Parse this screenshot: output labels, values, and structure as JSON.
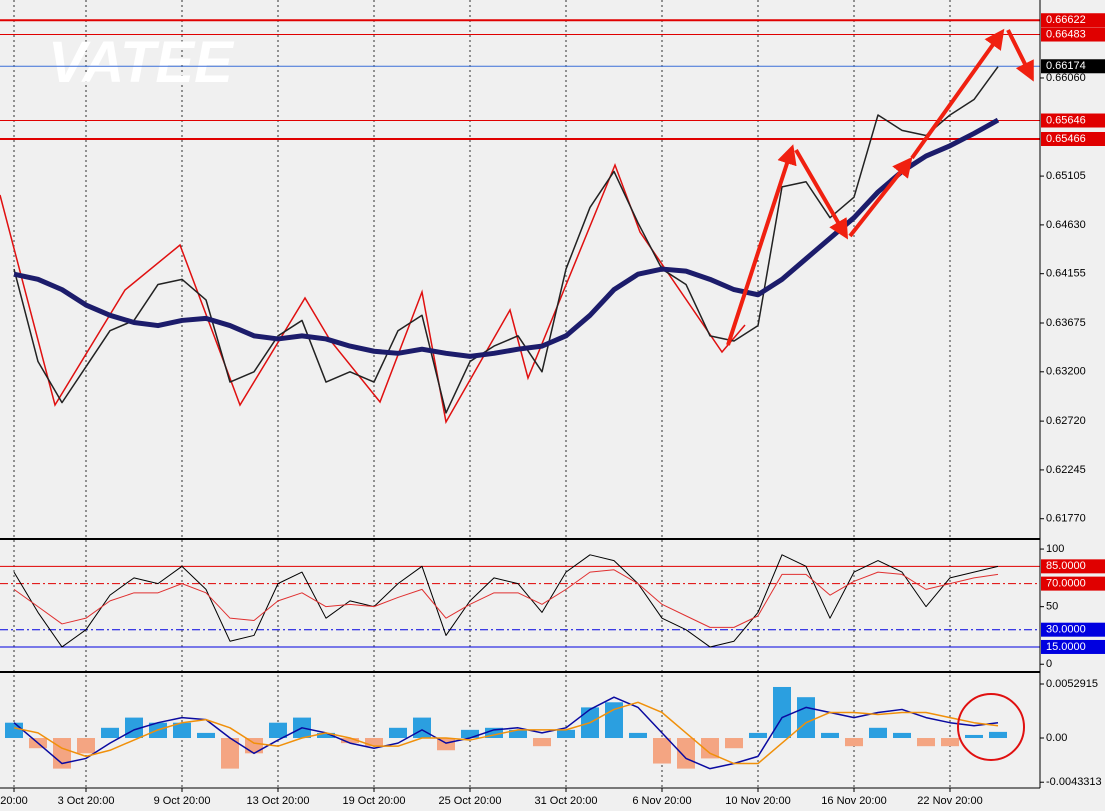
{
  "chart_data": [
    {
      "type": "line",
      "annotation": "VATEE",
      "ylim": [
        0.61592,
        0.66819
      ],
      "yticks": [
        {
          "value": 0.6606,
          "label": "0.66060"
        },
        0.65105,
        {
          "value": 0.6463,
          "label": "0.64630"
        },
        0.64155,
        0.63675,
        {
          "value": 0.632,
          "label": "0.63200"
        },
        {
          "value": 0.6272,
          "label": "0.62720"
        },
        0.62245,
        {
          "value": 0.6177,
          "label": "0.61770"
        }
      ],
      "levels": [
        {
          "value": 0.66622,
          "color": "#e00000",
          "box_color": "#e00000",
          "width": 2
        },
        {
          "value": 0.66483,
          "color": "#e00000",
          "box_color": "#e00000",
          "width": 1
        },
        {
          "value": 0.66174,
          "color": "#3b6fd8",
          "box_color": "#000000",
          "width": 1
        },
        {
          "value": 0.65646,
          "color": "#e00000",
          "box_color": "#e00000",
          "width": 1
        },
        {
          "value": 0.65466,
          "color": "#e00000",
          "box_color": "#e00000",
          "width": 2
        }
      ],
      "series": [
        {
          "color": "#222222",
          "width": 1.5,
          "values": [
            0.642,
            0.633,
            0.629,
            0.6325,
            0.636,
            0.637,
            0.6405,
            0.641,
            0.639,
            0.631,
            0.632,
            0.6355,
            0.637,
            0.631,
            0.632,
            0.631,
            0.636,
            0.6375,
            0.628,
            0.633,
            0.6345,
            0.6355,
            0.632,
            0.642,
            0.648,
            0.6515,
            0.6465,
            0.642,
            0.6405,
            0.6355,
            0.635,
            0.6365,
            0.65,
            0.6505,
            0.647,
            0.649,
            0.657,
            0.6555,
            0.655,
            0.657,
            0.6585,
            0.6617
          ]
        },
        {
          "color": "#1c1c6b",
          "width": 5,
          "values": [
            0.6415,
            0.641,
            0.64,
            0.6385,
            0.6375,
            0.6368,
            0.6365,
            0.637,
            0.6372,
            0.6365,
            0.6355,
            0.6352,
            0.6355,
            0.6352,
            0.6345,
            0.634,
            0.6338,
            0.6342,
            0.6338,
            0.6335,
            0.6338,
            0.6342,
            0.6345,
            0.6355,
            0.6375,
            0.64,
            0.6415,
            0.642,
            0.6418,
            0.641,
            0.64,
            0.6395,
            0.641,
            0.643,
            0.645,
            0.647,
            0.6495,
            0.6515,
            0.653,
            0.654,
            0.6552,
            0.6565
          ]
        }
      ]
    },
    {
      "type": "line",
      "ylim": [
        -5,
        107
      ],
      "yticks": [
        100,
        50,
        0
      ],
      "levels": [
        {
          "value": 85,
          "label": "85.0000",
          "color": "#e00000",
          "box_color": "#e00000",
          "style": "solid"
        },
        {
          "value": 70,
          "label": "70.0000",
          "color": "#e00000",
          "box_color": "#e00000",
          "style": "dashdot"
        },
        {
          "value": 30,
          "label": "30.0000",
          "color": "#0000e0",
          "box_color": "#0000e0",
          "style": "dashdot"
        },
        {
          "value": 15,
          "label": "15.0000",
          "color": "#0000e0",
          "box_color": "#0000e0",
          "style": "solid"
        }
      ],
      "series": [
        {
          "color": "#000000",
          "width": 1,
          "values": [
            80,
            45,
            15,
            30,
            60,
            75,
            70,
            85,
            65,
            20,
            25,
            70,
            80,
            40,
            55,
            50,
            70,
            85,
            25,
            55,
            75,
            70,
            45,
            80,
            95,
            90,
            70,
            40,
            30,
            15,
            20,
            45,
            95,
            85,
            40,
            80,
            90,
            80,
            50,
            75,
            80,
            85
          ]
        },
        {
          "color": "#e03030",
          "width": 1,
          "values": [
            65,
            50,
            35,
            40,
            55,
            62,
            62,
            70,
            62,
            40,
            38,
            55,
            62,
            50,
            52,
            50,
            58,
            65,
            40,
            52,
            62,
            62,
            52,
            65,
            80,
            82,
            70,
            52,
            42,
            32,
            32,
            42,
            78,
            78,
            60,
            72,
            80,
            78,
            65,
            70,
            75,
            78
          ]
        }
      ]
    },
    {
      "type": "bar",
      "ylim": [
        -0.0048,
        0.00637
      ],
      "yticks": [
        0.0052915,
        {
          "value": 0,
          "label": "0.00"
        },
        -0.0043313
      ],
      "categories": [
        "20:00",
        null,
        null,
        "3 Oct 20:00",
        null,
        null,
        null,
        "9 Oct 20:00",
        null,
        null,
        null,
        "13 Oct 20:00",
        null,
        null,
        null,
        "19 Oct 20:00",
        null,
        null,
        null,
        "25 Oct 20:00",
        null,
        null,
        null,
        "31 Oct 20:00",
        null,
        null,
        null,
        "6 Nov 20:00",
        null,
        null,
        null,
        "10 Nov 20:00",
        null,
        null,
        null,
        "16 Nov 20:00",
        null,
        null,
        null,
        "22 Nov 20:00",
        null,
        null
      ],
      "series": [
        {
          "style": "bar",
          "color": "#2b9fe0",
          "negative_color": "#f4a582",
          "values": [
            0.0015,
            -0.001,
            -0.003,
            -0.0015,
            0.001,
            0.002,
            0.0015,
            0.0015,
            0.0005,
            -0.003,
            -0.0015,
            0.0015,
            0.002,
            0.0005,
            -0.0005,
            -0.0008,
            0.001,
            0.002,
            -0.0012,
            0.0008,
            0.001,
            0.0008,
            -0.0008,
            0.0008,
            0.003,
            0.0035,
            0.0005,
            -0.0025,
            -0.003,
            -0.002,
            -0.001,
            0.0005,
            0.005,
            0.004,
            0.0005,
            -0.0008,
            0.001,
            0.0005,
            -0.0008,
            -0.0008,
            0.0003,
            0.0006
          ]
        },
        {
          "style": "line",
          "color": "#0a0aa0",
          "values": [
            0.0015,
            -0.0005,
            -0.0025,
            -0.002,
            -0.0005,
            0.0008,
            0.0015,
            0.002,
            0.0018,
            0,
            -0.0015,
            -0.0002,
            0.001,
            0.0005,
            -0.0005,
            -0.001,
            -0.0005,
            0.0008,
            -0.0005,
            0,
            0.0008,
            0.001,
            0.0005,
            0.001,
            0.0028,
            0.004,
            0.003,
            0.0005,
            -0.002,
            -0.003,
            -0.0025,
            -0.0018,
            0.002,
            0.003,
            0.0025,
            0.002,
            0.0025,
            0.0028,
            0.002,
            0.0015,
            0.0012,
            0.0015
          ]
        },
        {
          "style": "line",
          "color": "#f0900a",
          "values": [
            0.001,
            0.0005,
            -0.001,
            -0.0018,
            -0.0012,
            -0.0002,
            0.0008,
            0.0015,
            0.0018,
            0.001,
            -0.0005,
            -0.0008,
            0,
            0.0005,
            0,
            -0.0008,
            -0.0008,
            0,
            0,
            -0.0002,
            0.0003,
            0.0008,
            0.0008,
            0.0008,
            0.0015,
            0.0028,
            0.0035,
            0.0025,
            0.0005,
            -0.0015,
            -0.0025,
            -0.0025,
            -0.0005,
            0.0015,
            0.0025,
            0.0025,
            0.0023,
            0.0025,
            0.0025,
            0.002,
            0.0015,
            0.0012
          ]
        }
      ]
    }
  ]
}
